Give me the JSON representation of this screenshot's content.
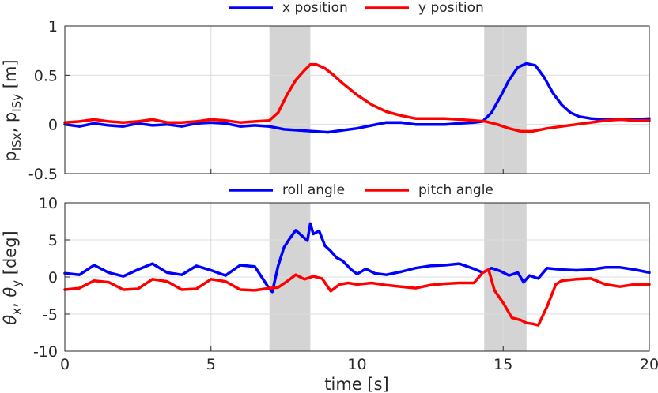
{
  "chart_data": [
    {
      "type": "line",
      "title": "",
      "xlabel": "",
      "ylabel": "p_ISx, p_ISy [m]",
      "ylabel_parts": {
        "main": "p",
        "sub1": "ISx",
        "sep": ", ",
        "main2": "p",
        "sub2": "ISy",
        "unit": " [m]"
      },
      "xlim": [
        0,
        20
      ],
      "ylim": [
        -0.5,
        1
      ],
      "xticks": [
        0,
        5,
        10,
        15,
        20
      ],
      "xticklabels": [
        "",
        "",
        "",
        "",
        ""
      ],
      "yticks": [
        -0.5,
        0,
        0.5,
        1
      ],
      "yticklabels": [
        "-0.5",
        "0",
        "0.5",
        "1"
      ],
      "grid": true,
      "legend": "top-center, horizontal",
      "shaded_intervals": [
        [
          7.0,
          8.4
        ],
        [
          14.35,
          15.8
        ]
      ],
      "series": [
        {
          "name": "x position",
          "color": "#0000ff",
          "x": [
            0,
            0.5,
            1,
            1.5,
            2,
            2.5,
            3,
            3.5,
            4,
            4.5,
            5,
            5.5,
            6,
            6.5,
            7,
            7.5,
            8,
            8.5,
            9,
            9.5,
            10,
            10.5,
            11,
            11.5,
            12,
            12.5,
            13,
            13.5,
            14,
            14.3,
            14.6,
            14.9,
            15.2,
            15.5,
            15.8,
            16.1,
            16.4,
            16.7,
            17,
            17.3,
            17.6,
            18,
            18.5,
            19,
            19.5,
            20
          ],
          "y": [
            0,
            -0.02,
            0.01,
            -0.01,
            -0.02,
            0.01,
            -0.01,
            0.0,
            -0.02,
            0.01,
            0.02,
            0.01,
            -0.02,
            -0.01,
            -0.02,
            -0.05,
            -0.06,
            -0.07,
            -0.08,
            -0.06,
            -0.04,
            -0.01,
            0.02,
            0.02,
            0.0,
            0.0,
            0.0,
            0.01,
            0.02,
            0.03,
            0.12,
            0.28,
            0.45,
            0.58,
            0.62,
            0.6,
            0.48,
            0.32,
            0.2,
            0.12,
            0.08,
            0.06,
            0.05,
            0.05,
            0.05,
            0.06
          ]
        },
        {
          "name": "y position",
          "color": "#ff0000",
          "x": [
            0,
            0.5,
            1,
            1.5,
            2,
            2.5,
            3,
            3.5,
            4,
            4.5,
            5,
            5.5,
            6,
            6.5,
            7,
            7.3,
            7.6,
            7.9,
            8.2,
            8.4,
            8.6,
            8.9,
            9.2,
            9.5,
            10,
            10.5,
            11,
            11.5,
            12,
            12.5,
            13,
            13.5,
            14,
            14.4,
            14.8,
            15.2,
            15.6,
            16,
            16.5,
            17,
            17.5,
            18,
            18.5,
            19,
            19.5,
            20
          ],
          "y": [
            0.02,
            0.03,
            0.05,
            0.03,
            0.02,
            0.03,
            0.05,
            0.02,
            0.02,
            0.03,
            0.05,
            0.04,
            0.02,
            0.03,
            0.04,
            0.12,
            0.3,
            0.45,
            0.55,
            0.61,
            0.61,
            0.57,
            0.5,
            0.42,
            0.3,
            0.2,
            0.13,
            0.09,
            0.06,
            0.06,
            0.06,
            0.05,
            0.04,
            0.03,
            0.0,
            -0.04,
            -0.07,
            -0.07,
            -0.04,
            -0.02,
            0.0,
            0.02,
            0.04,
            0.05,
            0.04,
            0.04
          ]
        }
      ]
    },
    {
      "type": "line",
      "title": "",
      "xlabel": "time [s]",
      "ylabel": "θ_x, θ_y [deg]",
      "ylabel_parts": {
        "main": "θ",
        "sub1": "x",
        "sep": ", ",
        "main2": "θ",
        "sub2": "y",
        "unit": " [deg]"
      },
      "xlim": [
        0,
        20
      ],
      "ylim": [
        -10,
        10
      ],
      "xticks": [
        0,
        5,
        10,
        15,
        20
      ],
      "xticklabels": [
        "0",
        "5",
        "10",
        "15",
        "20"
      ],
      "yticks": [
        -10,
        -5,
        0,
        5,
        10
      ],
      "yticklabels": [
        "-10",
        "-5",
        "0",
        "5",
        "10"
      ],
      "grid": true,
      "legend": "top-center, horizontal",
      "shaded_intervals": [
        [
          7.0,
          8.4
        ],
        [
          14.35,
          15.8
        ]
      ],
      "series": [
        {
          "name": "roll angle",
          "color": "#0000ff",
          "x": [
            0,
            0.5,
            1,
            1.5,
            2,
            2.5,
            3,
            3.5,
            4,
            4.5,
            5,
            5.5,
            6,
            6.5,
            7,
            7.1,
            7.3,
            7.5,
            7.7,
            7.9,
            8.1,
            8.3,
            8.4,
            8.5,
            8.7,
            8.9,
            9.1,
            9.3,
            9.5,
            9.8,
            10,
            10.3,
            10.6,
            11,
            11.5,
            12,
            12.5,
            13,
            13.5,
            14,
            14.3,
            14.6,
            14.9,
            15.2,
            15.5,
            15.7,
            15.9,
            16.2,
            16.5,
            17,
            17.5,
            18,
            18.5,
            19,
            19.5,
            20
          ],
          "y": [
            0.5,
            0.3,
            1.6,
            0.6,
            0.1,
            1.0,
            1.8,
            0.6,
            0.3,
            1.5,
            0.9,
            0.2,
            1.6,
            1.4,
            -1.6,
            -2.0,
            1.5,
            4.0,
            5.2,
            6.3,
            5.6,
            4.9,
            7.2,
            5.8,
            6.2,
            4.2,
            3.5,
            2.6,
            2.2,
            1.0,
            0.4,
            1.1,
            0.5,
            0.3,
            0.7,
            1.2,
            1.5,
            1.6,
            1.8,
            1.1,
            0.6,
            1.2,
            0.8,
            0.2,
            0.6,
            -0.7,
            0.2,
            -0.2,
            1.2,
            1.0,
            0.9,
            1.0,
            1.3,
            1.3,
            1.0,
            0.6
          ]
        },
        {
          "name": "pitch angle",
          "color": "#ff0000",
          "x": [
            0,
            0.5,
            1,
            1.5,
            2,
            2.5,
            3,
            3.5,
            4,
            4.5,
            5,
            5.5,
            6,
            6.5,
            7,
            7.3,
            7.6,
            7.9,
            8.2,
            8.5,
            8.8,
            9.1,
            9.4,
            9.7,
            10,
            10.5,
            11,
            11.5,
            12,
            12.5,
            13,
            13.5,
            14,
            14.3,
            14.5,
            14.7,
            15,
            15.3,
            15.6,
            15.8,
            16,
            16.2,
            16.5,
            16.8,
            17,
            17.5,
            18,
            18.5,
            19,
            19.5,
            20
          ],
          "y": [
            -1.7,
            -1.5,
            -0.5,
            -0.7,
            -1.7,
            -1.6,
            -0.3,
            -0.6,
            -1.7,
            -1.6,
            -0.3,
            -0.6,
            -1.7,
            -1.8,
            -1.5,
            -1.4,
            -0.6,
            0.3,
            -0.3,
            0.1,
            -0.2,
            -1.9,
            -1.0,
            -0.8,
            -1.0,
            -0.8,
            -1.1,
            -1.3,
            -1.5,
            -1.1,
            -0.9,
            -0.8,
            -0.8,
            0.6,
            1.0,
            -1.8,
            -3.5,
            -5.5,
            -5.8,
            -6.2,
            -6.3,
            -6.5,
            -4.0,
            -1.0,
            -0.5,
            -0.3,
            -0.2,
            -1.0,
            -1.3,
            -1.0,
            -1.0
          ]
        }
      ]
    }
  ]
}
